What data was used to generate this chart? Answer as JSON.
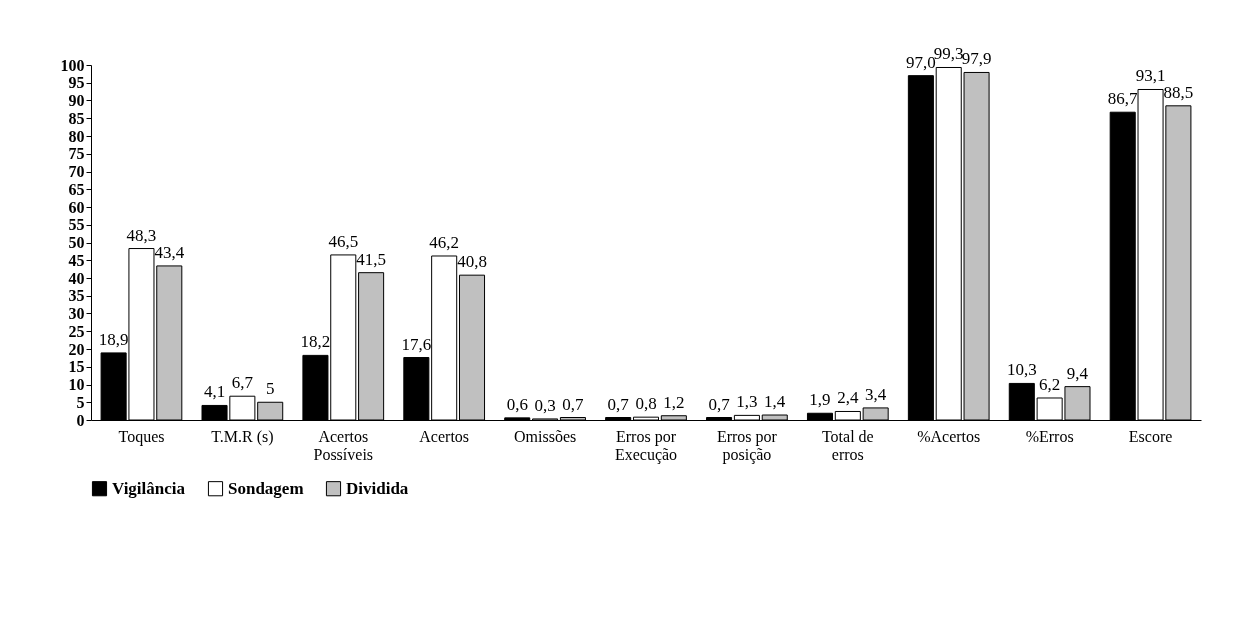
{
  "chart_data": {
    "type": "bar",
    "categories": [
      "Toques",
      "T.M.R (s)",
      "Acertos\nPossíveis",
      "Acertos",
      "Omissões",
      "Erros por\nExecução",
      "Erros por\nposição",
      "Total de\nerros",
      "%Acertos",
      "%Erros",
      "Escore"
    ],
    "series": [
      {
        "name": "Vigilância",
        "color": "#000000",
        "values": [
          18.9,
          4.1,
          18.2,
          17.6,
          0.6,
          0.7,
          0.7,
          1.9,
          97.0,
          10.3,
          86.7
        ],
        "value_labels": [
          "18,9",
          "4,1",
          "18,2",
          "17,6",
          "0,6",
          "0,7",
          "0,7",
          "1,9",
          "97,0",
          "10,3",
          "86,7"
        ]
      },
      {
        "name": "Sondagem",
        "color": "#ffffff",
        "values": [
          48.3,
          6.7,
          46.5,
          46.2,
          0.3,
          0.8,
          1.3,
          2.4,
          99.3,
          6.2,
          93.1
        ],
        "value_labels": [
          "48,3",
          "6,7",
          "46,5",
          "46,2",
          "0,3",
          "0,8",
          "1,3",
          "2,4",
          "99,3",
          "6,2",
          "93,1"
        ]
      },
      {
        "name": "Dividida",
        "color": "#c0c0c0",
        "values": [
          43.4,
          5,
          41.5,
          40.8,
          0.7,
          1.2,
          1.4,
          3.4,
          97.9,
          9.4,
          88.5
        ],
        "value_labels": [
          "43,4",
          "5",
          "41,5",
          "40,8",
          "0,7",
          "1,2",
          "1,4",
          "3,4",
          "97,9",
          "9,4",
          "88,5"
        ]
      }
    ],
    "ylim": [
      0,
      100
    ],
    "yticks": [
      0,
      5,
      10,
      15,
      20,
      25,
      30,
      35,
      40,
      45,
      50,
      55,
      60,
      65,
      70,
      75,
      80,
      85,
      90,
      95,
      100
    ],
    "grid": false,
    "legend": "bottom"
  }
}
